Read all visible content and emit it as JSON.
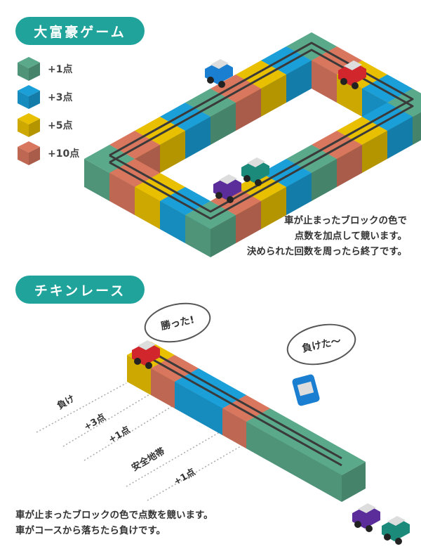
{
  "section1": {
    "title": "大富豪ゲーム",
    "legend": [
      {
        "label": "+1点",
        "color": "#5aa98a"
      },
      {
        "label": "+3点",
        "color": "#1a9fd9"
      },
      {
        "label": "+5点",
        "color": "#e8c000"
      },
      {
        "label": "+10点",
        "color": "#d9765e"
      }
    ],
    "caption": [
      "車が止まったブロックの色で",
      "点数を加点して競います。",
      "決められた回数を周ったら終了です。"
    ]
  },
  "section2": {
    "title": "チキンレース",
    "bubble_win": "勝った!",
    "bubble_lose": "負けた〜",
    "zones": [
      "負け",
      "+3点",
      "+1点",
      "安全地帯",
      "+1点"
    ],
    "caption": [
      "車が止まったブロックの色で点数を競います。",
      "車がコースから落ちたら負けです。"
    ]
  },
  "colors": {
    "accent": "#1fa39a",
    "green": "#5aa98a",
    "blue": "#1a9fd9",
    "yellow": "#e8c000",
    "salmon": "#d9765e"
  }
}
